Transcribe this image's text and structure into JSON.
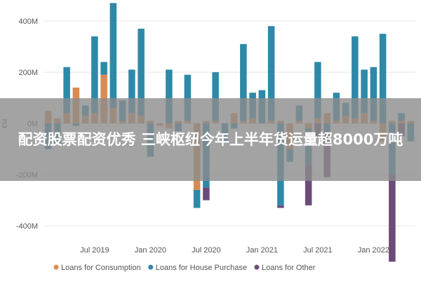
{
  "overlay": {
    "headline": "配资股票配资优秀 三峡枢纽今年上半年货运量超8000万吨"
  },
  "chart_data": {
    "type": "bar",
    "stacked": true,
    "ylabel": "€M",
    "ylim": [
      -460,
      460
    ],
    "y_ticks": [
      {
        "value": 400,
        "label": "400M"
      },
      {
        "value": 200,
        "label": "200M"
      },
      {
        "value": 0,
        "label": "0M"
      },
      {
        "value": -200,
        "label": "-200M"
      },
      {
        "value": -400,
        "label": "-400M"
      }
    ],
    "x_ticks": [
      {
        "index": 5,
        "label": "Jul 2019"
      },
      {
        "index": 11,
        "label": "Jan 2020"
      },
      {
        "index": 17,
        "label": "Jul 2020"
      },
      {
        "index": 23,
        "label": "Jan 2021"
      },
      {
        "index": 29,
        "label": "Jul 2021"
      },
      {
        "index": 35,
        "label": "Jan 2022"
      }
    ],
    "grid": true,
    "legend_position": "bottom",
    "series": [
      {
        "name": "Loans for Consumption",
        "color": "#D98C52",
        "values": [
          50,
          20,
          40,
          140,
          30,
          40,
          190,
          60,
          10,
          40,
          30,
          10,
          -10,
          -20,
          10,
          10,
          -260,
          10,
          10,
          0,
          40,
          10,
          20,
          0,
          10,
          10,
          -100,
          10,
          -20,
          20,
          40,
          10,
          30,
          20,
          40,
          10,
          -70,
          10,
          10,
          10
        ]
      },
      {
        "name": "Loans for House Purchase",
        "color": "#2E89A8",
        "values": [
          -100,
          -80,
          180,
          -10,
          40,
          300,
          50,
          410,
          80,
          170,
          340,
          -130,
          0,
          210,
          -30,
          180,
          -70,
          -250,
          190,
          -70,
          -20,
          300,
          100,
          130,
          370,
          -320,
          -50,
          60,
          -140,
          220,
          -30,
          110,
          50,
          320,
          170,
          210,
          350,
          -200,
          30,
          -70
        ]
      },
      {
        "name": "Loans for Other",
        "color": "#6B4B7A",
        "values": [
          0,
          0,
          0,
          0,
          0,
          0,
          0,
          0,
          0,
          0,
          0,
          0,
          0,
          0,
          0,
          0,
          0,
          -50,
          0,
          0,
          0,
          0,
          0,
          0,
          0,
          -10,
          0,
          0,
          -160,
          -50,
          -180,
          0,
          0,
          0,
          0,
          0,
          0,
          -340,
          -50,
          0
        ]
      }
    ]
  }
}
